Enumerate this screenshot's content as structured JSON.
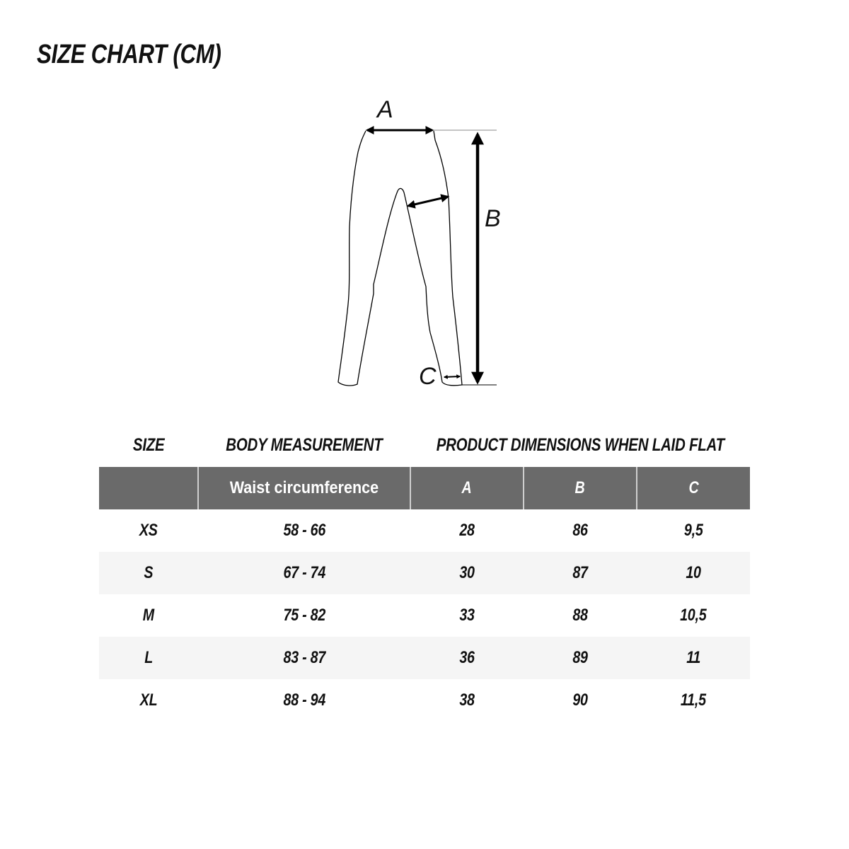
{
  "title": "SIZE CHART (CM)",
  "diagram": {
    "label_a": "A",
    "label_b": "B",
    "label_c": "C"
  },
  "column_groups": {
    "size": "SIZE",
    "body": "BODY MEASUREMENT",
    "product": "PRODUCT DIMENSIONS WHEN LAID FLAT"
  },
  "header": {
    "size": "",
    "waist": "Waist circumference",
    "a": "A",
    "b": "B",
    "c": "C"
  },
  "header_color": "#6a6a6a",
  "rows": [
    {
      "size": "XS",
      "waist": "58 - 66",
      "a": "28",
      "b": "86",
      "c": "9,5"
    },
    {
      "size": "S",
      "waist": "67 - 74",
      "a": "30",
      "b": "87",
      "c": "10"
    },
    {
      "size": "M",
      "waist": "75 - 82",
      "a": "33",
      "b": "88",
      "c": "10,5"
    },
    {
      "size": "L",
      "waist": "83 - 87",
      "a": "36",
      "b": "89",
      "c": "11"
    },
    {
      "size": "XL",
      "waist": "88 - 94",
      "a": "38",
      "b": "90",
      "c": "11,5"
    }
  ]
}
